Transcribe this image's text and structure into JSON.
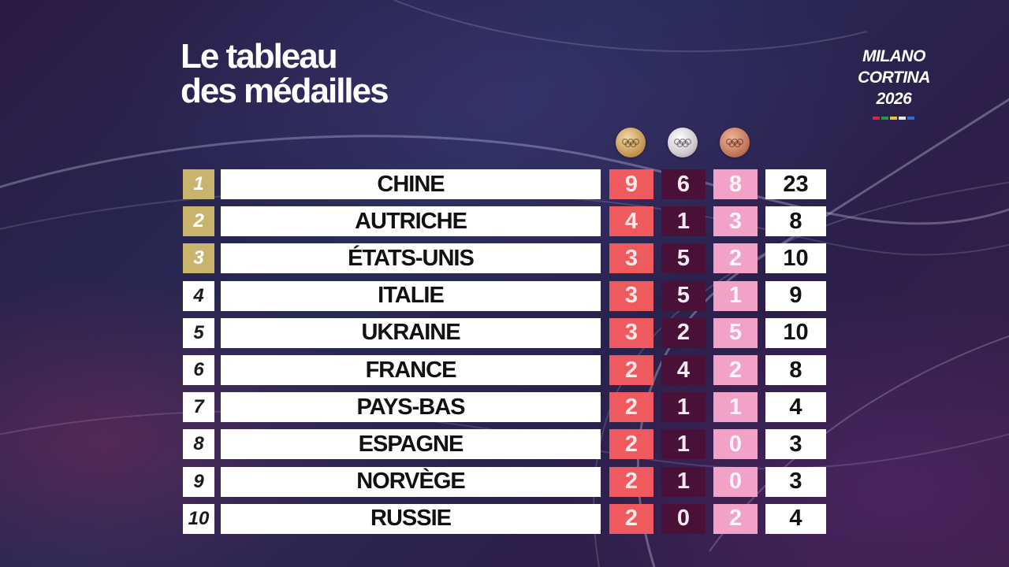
{
  "title": {
    "line1": "Le tableau",
    "line2": "des médailles"
  },
  "brand": {
    "line1": "MILANO",
    "line2": "CORTINA",
    "line3": "2026",
    "stripe_colors": [
      "#d9262f",
      "#1f9a4a",
      "#f2c21b",
      "#e7e7e7",
      "#2b6fd1"
    ]
  },
  "medal_headers": [
    {
      "icon": "gold-medal-icon",
      "color": "#c99a55"
    },
    {
      "icon": "silver-medal-icon",
      "color": "#cfc9cf"
    },
    {
      "icon": "bronze-medal-icon",
      "color": "#c47a5c"
    }
  ],
  "colors": {
    "podium_rank": "#c9b46e",
    "gold_cell": "#ef5a5e",
    "silver_cell": "#4a1138",
    "bronze_cell": "#f2a2c6"
  },
  "rows": [
    {
      "rank": "1",
      "country": "CHINE",
      "gold": "9",
      "silver": "6",
      "bronze": "8",
      "total": "23"
    },
    {
      "rank": "2",
      "country": "AUTRICHE",
      "gold": "4",
      "silver": "1",
      "bronze": "3",
      "total": "8"
    },
    {
      "rank": "3",
      "country": "ÉTATS-UNIS",
      "gold": "3",
      "silver": "5",
      "bronze": "2",
      "total": "10"
    },
    {
      "rank": "4",
      "country": "ITALIE",
      "gold": "3",
      "silver": "5",
      "bronze": "1",
      "total": "9"
    },
    {
      "rank": "5",
      "country": "UKRAINE",
      "gold": "3",
      "silver": "2",
      "bronze": "5",
      "total": "10"
    },
    {
      "rank": "6",
      "country": "FRANCE",
      "gold": "2",
      "silver": "4",
      "bronze": "2",
      "total": "8"
    },
    {
      "rank": "7",
      "country": "PAYS-BAS",
      "gold": "2",
      "silver": "1",
      "bronze": "1",
      "total": "4"
    },
    {
      "rank": "8",
      "country": "ESPAGNE",
      "gold": "2",
      "silver": "1",
      "bronze": "0",
      "total": "3"
    },
    {
      "rank": "9",
      "country": "NORVÈGE",
      "gold": "2",
      "silver": "1",
      "bronze": "0",
      "total": "3"
    },
    {
      "rank": "10",
      "country": "RUSSIE",
      "gold": "2",
      "silver": "0",
      "bronze": "2",
      "total": "4"
    }
  ]
}
